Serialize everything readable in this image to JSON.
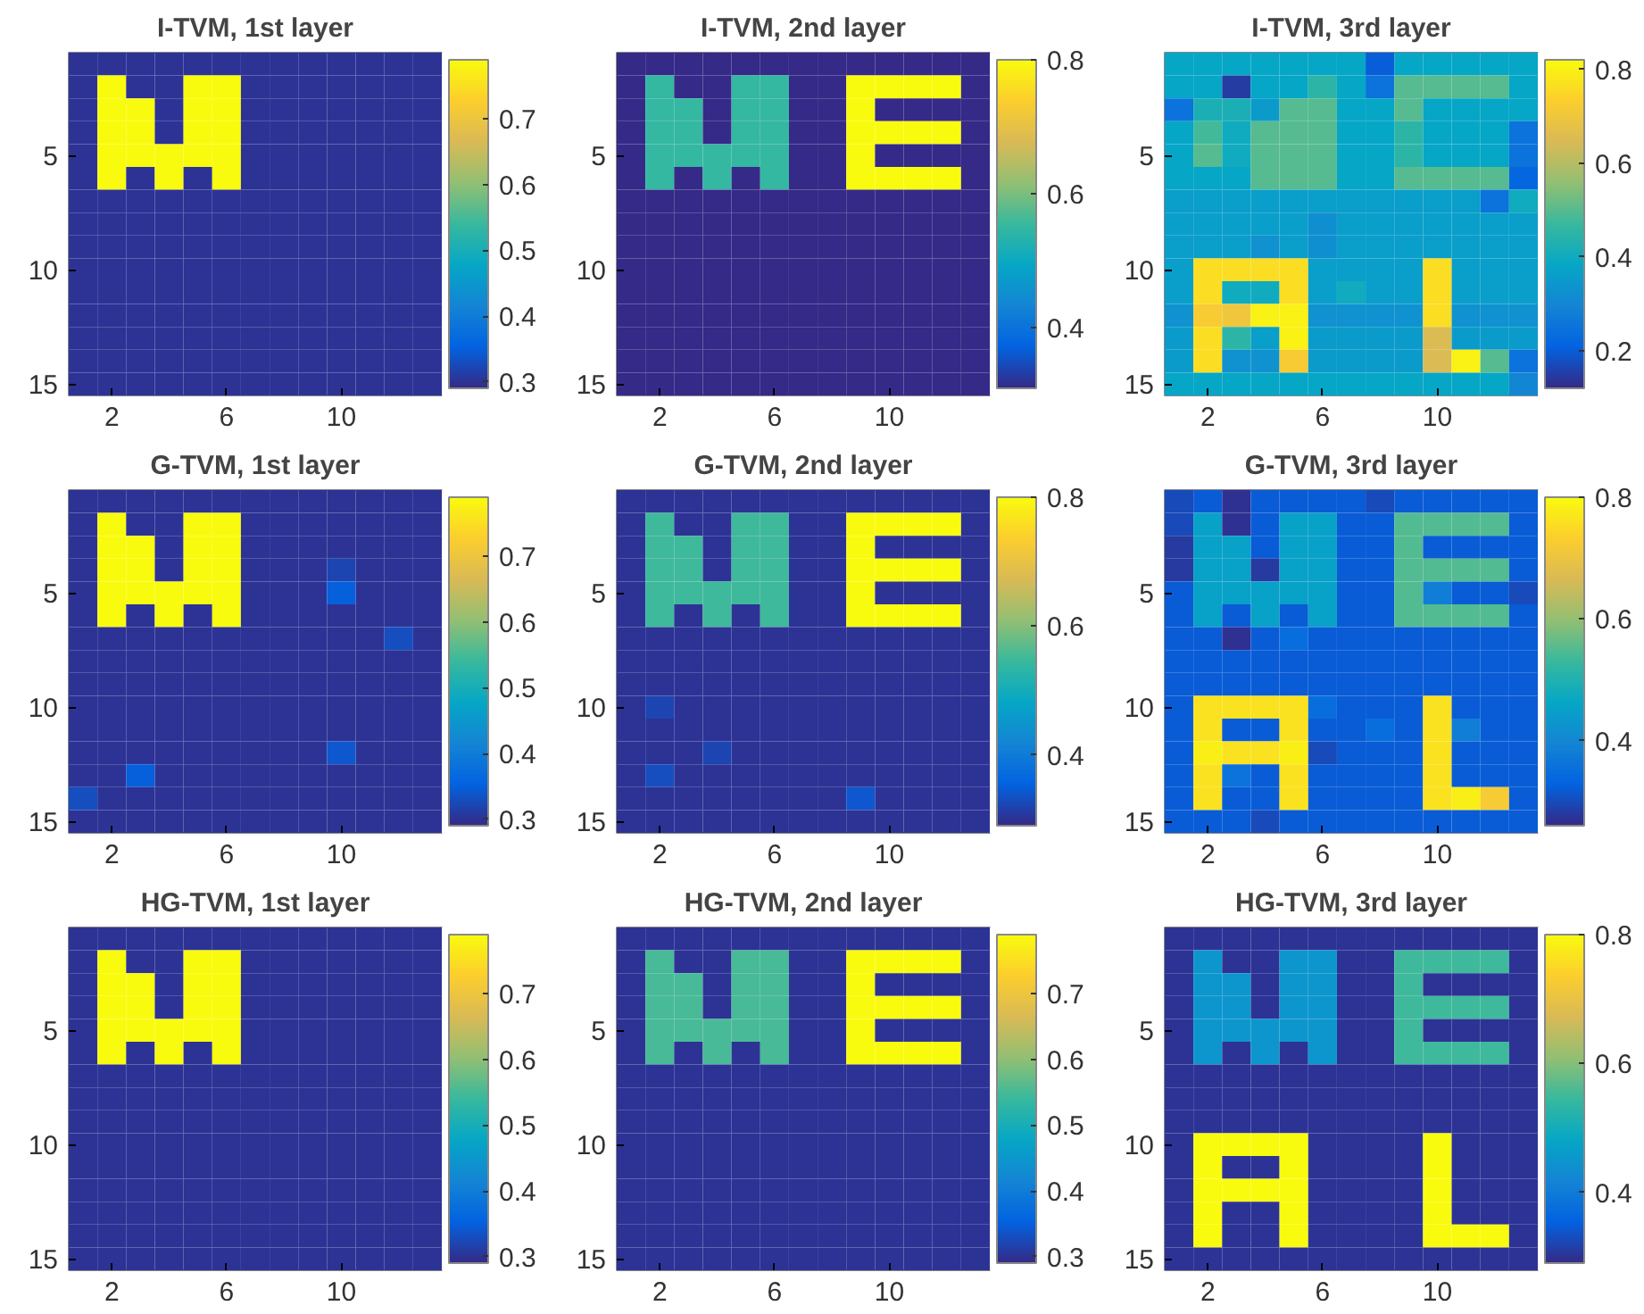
{
  "chart_data": [
    {
      "type": "heatmap",
      "title": "I-TVM, 1st layer",
      "xlim": [
        0.5,
        13.5
      ],
      "ylim": [
        15.5,
        0.5
      ],
      "xticks": [
        2,
        6,
        10
      ],
      "yticks": [
        5,
        10,
        15
      ],
      "clim": [
        0.29,
        0.79
      ],
      "cticks": [
        0.3,
        0.4,
        0.5,
        0.6,
        0.7
      ],
      "grid": false,
      "cells": [
        [
          0.3,
          0.3,
          0.3,
          0.3,
          0.3,
          0.3,
          0.3,
          0.3,
          0.3,
          0.3,
          0.3,
          0.3,
          0.3
        ],
        [
          0.3,
          0.79,
          0.3,
          0.3,
          0.79,
          0.79,
          0.3,
          0.3,
          0.3,
          0.3,
          0.3,
          0.3,
          0.3
        ],
        [
          0.3,
          0.79,
          0.79,
          0.3,
          0.79,
          0.79,
          0.3,
          0.3,
          0.3,
          0.3,
          0.3,
          0.3,
          0.3
        ],
        [
          0.3,
          0.79,
          0.79,
          0.3,
          0.79,
          0.79,
          0.3,
          0.3,
          0.3,
          0.3,
          0.3,
          0.3,
          0.3
        ],
        [
          0.3,
          0.79,
          0.79,
          0.79,
          0.79,
          0.79,
          0.3,
          0.3,
          0.3,
          0.3,
          0.3,
          0.3,
          0.3
        ],
        [
          0.3,
          0.79,
          0.3,
          0.79,
          0.3,
          0.79,
          0.3,
          0.3,
          0.3,
          0.3,
          0.3,
          0.3,
          0.3
        ],
        [
          0.3,
          0.3,
          0.3,
          0.3,
          0.3,
          0.3,
          0.3,
          0.3,
          0.3,
          0.3,
          0.3,
          0.3,
          0.3
        ],
        [
          0.3,
          0.3,
          0.3,
          0.3,
          0.3,
          0.3,
          0.3,
          0.3,
          0.3,
          0.3,
          0.3,
          0.3,
          0.3
        ],
        [
          0.3,
          0.3,
          0.3,
          0.3,
          0.3,
          0.3,
          0.3,
          0.3,
          0.3,
          0.3,
          0.3,
          0.3,
          0.3
        ],
        [
          0.3,
          0.3,
          0.3,
          0.3,
          0.3,
          0.3,
          0.3,
          0.3,
          0.3,
          0.3,
          0.3,
          0.3,
          0.3
        ],
        [
          0.3,
          0.3,
          0.3,
          0.3,
          0.3,
          0.3,
          0.3,
          0.3,
          0.3,
          0.3,
          0.3,
          0.3,
          0.3
        ],
        [
          0.3,
          0.3,
          0.3,
          0.3,
          0.3,
          0.3,
          0.3,
          0.3,
          0.3,
          0.3,
          0.3,
          0.3,
          0.3
        ],
        [
          0.3,
          0.3,
          0.3,
          0.3,
          0.3,
          0.3,
          0.3,
          0.3,
          0.3,
          0.3,
          0.3,
          0.3,
          0.3
        ],
        [
          0.3,
          0.3,
          0.3,
          0.3,
          0.3,
          0.3,
          0.3,
          0.3,
          0.3,
          0.3,
          0.3,
          0.3,
          0.3
        ],
        [
          0.3,
          0.3,
          0.3,
          0.3,
          0.3,
          0.3,
          0.3,
          0.3,
          0.3,
          0.3,
          0.3,
          0.3,
          0.3
        ]
      ]
    },
    {
      "type": "heatmap",
      "title": "I-TVM, 2nd layer",
      "xlim": [
        0.5,
        13.5
      ],
      "ylim": [
        15.5,
        0.5
      ],
      "xticks": [
        2,
        6,
        10
      ],
      "yticks": [
        5,
        10,
        15
      ],
      "clim": [
        0.31,
        0.8
      ],
      "cticks": [
        0.4,
        0.6,
        0.8
      ],
      "grid": false,
      "cells": [
        [
          0.31,
          0.31,
          0.31,
          0.31,
          0.31,
          0.31,
          0.31,
          0.31,
          0.31,
          0.31,
          0.31,
          0.31,
          0.31
        ],
        [
          0.31,
          0.55,
          0.31,
          0.31,
          0.55,
          0.55,
          0.31,
          0.31,
          0.8,
          0.8,
          0.8,
          0.8,
          0.31
        ],
        [
          0.31,
          0.55,
          0.55,
          0.31,
          0.55,
          0.55,
          0.31,
          0.31,
          0.8,
          0.31,
          0.31,
          0.31,
          0.31
        ],
        [
          0.31,
          0.55,
          0.55,
          0.31,
          0.55,
          0.55,
          0.31,
          0.31,
          0.8,
          0.8,
          0.8,
          0.8,
          0.31
        ],
        [
          0.31,
          0.55,
          0.55,
          0.55,
          0.55,
          0.55,
          0.31,
          0.31,
          0.8,
          0.31,
          0.31,
          0.31,
          0.31
        ],
        [
          0.31,
          0.55,
          0.31,
          0.55,
          0.31,
          0.55,
          0.31,
          0.31,
          0.8,
          0.8,
          0.8,
          0.8,
          0.31
        ],
        [
          0.31,
          0.31,
          0.31,
          0.31,
          0.31,
          0.31,
          0.31,
          0.31,
          0.31,
          0.31,
          0.31,
          0.31,
          0.31
        ],
        [
          0.31,
          0.31,
          0.31,
          0.31,
          0.31,
          0.31,
          0.31,
          0.31,
          0.31,
          0.31,
          0.31,
          0.31,
          0.31
        ],
        [
          0.31,
          0.31,
          0.31,
          0.31,
          0.31,
          0.31,
          0.31,
          0.31,
          0.31,
          0.31,
          0.31,
          0.31,
          0.31
        ],
        [
          0.31,
          0.31,
          0.31,
          0.31,
          0.31,
          0.31,
          0.31,
          0.31,
          0.31,
          0.31,
          0.31,
          0.31,
          0.31
        ],
        [
          0.31,
          0.31,
          0.31,
          0.31,
          0.31,
          0.31,
          0.31,
          0.31,
          0.31,
          0.31,
          0.31,
          0.31,
          0.31
        ],
        [
          0.31,
          0.31,
          0.31,
          0.31,
          0.31,
          0.31,
          0.31,
          0.31,
          0.31,
          0.31,
          0.31,
          0.31,
          0.31
        ],
        [
          0.31,
          0.31,
          0.31,
          0.31,
          0.31,
          0.31,
          0.31,
          0.31,
          0.31,
          0.31,
          0.31,
          0.31,
          0.31
        ],
        [
          0.31,
          0.31,
          0.31,
          0.31,
          0.31,
          0.31,
          0.31,
          0.31,
          0.31,
          0.31,
          0.31,
          0.31,
          0.31
        ],
        [
          0.31,
          0.31,
          0.31,
          0.31,
          0.31,
          0.31,
          0.31,
          0.31,
          0.31,
          0.31,
          0.31,
          0.31,
          0.31
        ]
      ]
    },
    {
      "type": "heatmap",
      "title": "I-TVM, 3rd layer",
      "xlim": [
        0.5,
        13.5
      ],
      "ylim": [
        15.5,
        0.5
      ],
      "xticks": [
        2,
        6,
        10
      ],
      "yticks": [
        5,
        10,
        15
      ],
      "clim": [
        0.12,
        0.82
      ],
      "cticks": [
        0.2,
        0.4,
        0.6,
        0.8
      ],
      "grid": false,
      "cells": [
        [
          0.38,
          0.38,
          0.38,
          0.38,
          0.38,
          0.38,
          0.38,
          0.2,
          0.38,
          0.38,
          0.38,
          0.38,
          0.38
        ],
        [
          0.38,
          0.38,
          0.15,
          0.38,
          0.38,
          0.45,
          0.38,
          0.25,
          0.5,
          0.5,
          0.5,
          0.5,
          0.38
        ],
        [
          0.25,
          0.42,
          0.42,
          0.35,
          0.5,
          0.5,
          0.38,
          0.38,
          0.5,
          0.38,
          0.38,
          0.38,
          0.38
        ],
        [
          0.38,
          0.48,
          0.4,
          0.5,
          0.5,
          0.5,
          0.38,
          0.38,
          0.45,
          0.38,
          0.38,
          0.38,
          0.25
        ],
        [
          0.38,
          0.5,
          0.4,
          0.5,
          0.5,
          0.5,
          0.38,
          0.38,
          0.45,
          0.38,
          0.38,
          0.38,
          0.25
        ],
        [
          0.38,
          0.38,
          0.38,
          0.5,
          0.5,
          0.5,
          0.38,
          0.38,
          0.5,
          0.5,
          0.5,
          0.5,
          0.22
        ],
        [
          0.36,
          0.36,
          0.36,
          0.36,
          0.36,
          0.36,
          0.36,
          0.36,
          0.36,
          0.36,
          0.36,
          0.25,
          0.4
        ],
        [
          0.36,
          0.36,
          0.36,
          0.36,
          0.36,
          0.32,
          0.36,
          0.36,
          0.36,
          0.36,
          0.36,
          0.36,
          0.36
        ],
        [
          0.36,
          0.36,
          0.36,
          0.33,
          0.36,
          0.32,
          0.36,
          0.36,
          0.36,
          0.36,
          0.36,
          0.36,
          0.36
        ],
        [
          0.36,
          0.76,
          0.76,
          0.76,
          0.76,
          0.36,
          0.36,
          0.36,
          0.36,
          0.76,
          0.36,
          0.36,
          0.36
        ],
        [
          0.36,
          0.76,
          0.4,
          0.4,
          0.76,
          0.36,
          0.4,
          0.36,
          0.36,
          0.76,
          0.36,
          0.36,
          0.36
        ],
        [
          0.33,
          0.72,
          0.7,
          0.8,
          0.8,
          0.33,
          0.33,
          0.33,
          0.33,
          0.76,
          0.33,
          0.33,
          0.33
        ],
        [
          0.35,
          0.76,
          0.45,
          0.36,
          0.8,
          0.35,
          0.35,
          0.35,
          0.35,
          0.65,
          0.35,
          0.35,
          0.35
        ],
        [
          0.35,
          0.76,
          0.33,
          0.33,
          0.72,
          0.35,
          0.35,
          0.35,
          0.35,
          0.65,
          0.8,
          0.5,
          0.25
        ],
        [
          0.38,
          0.38,
          0.38,
          0.38,
          0.38,
          0.38,
          0.38,
          0.38,
          0.38,
          0.38,
          0.38,
          0.38,
          0.3
        ]
      ]
    },
    {
      "type": "heatmap",
      "title": "G-TVM, 1st layer",
      "xlim": [
        0.5,
        13.5
      ],
      "ylim": [
        15.5,
        0.5
      ],
      "xticks": [
        2,
        6,
        10
      ],
      "yticks": [
        5,
        10,
        15
      ],
      "clim": [
        0.29,
        0.79
      ],
      "cticks": [
        0.3,
        0.4,
        0.5,
        0.6,
        0.7
      ],
      "grid": false,
      "cells": [
        [
          0.3,
          0.3,
          0.3,
          0.3,
          0.3,
          0.3,
          0.3,
          0.3,
          0.3,
          0.3,
          0.3,
          0.3,
          0.3
        ],
        [
          0.3,
          0.79,
          0.3,
          0.3,
          0.79,
          0.79,
          0.3,
          0.3,
          0.3,
          0.3,
          0.3,
          0.3,
          0.3
        ],
        [
          0.3,
          0.79,
          0.79,
          0.3,
          0.79,
          0.79,
          0.3,
          0.3,
          0.3,
          0.3,
          0.3,
          0.3,
          0.3
        ],
        [
          0.3,
          0.79,
          0.79,
          0.3,
          0.79,
          0.79,
          0.3,
          0.3,
          0.3,
          0.32,
          0.3,
          0.3,
          0.3
        ],
        [
          0.3,
          0.79,
          0.79,
          0.79,
          0.79,
          0.79,
          0.3,
          0.3,
          0.3,
          0.35,
          0.3,
          0.3,
          0.3
        ],
        [
          0.3,
          0.79,
          0.3,
          0.79,
          0.3,
          0.79,
          0.3,
          0.3,
          0.3,
          0.3,
          0.3,
          0.3,
          0.3
        ],
        [
          0.3,
          0.3,
          0.3,
          0.3,
          0.3,
          0.3,
          0.3,
          0.3,
          0.3,
          0.3,
          0.3,
          0.33,
          0.3
        ],
        [
          0.3,
          0.3,
          0.3,
          0.3,
          0.3,
          0.3,
          0.3,
          0.3,
          0.3,
          0.3,
          0.3,
          0.3,
          0.3
        ],
        [
          0.3,
          0.3,
          0.3,
          0.3,
          0.3,
          0.3,
          0.3,
          0.3,
          0.3,
          0.3,
          0.3,
          0.3,
          0.3
        ],
        [
          0.3,
          0.3,
          0.3,
          0.3,
          0.3,
          0.3,
          0.3,
          0.3,
          0.3,
          0.3,
          0.3,
          0.3,
          0.3
        ],
        [
          0.3,
          0.3,
          0.3,
          0.3,
          0.3,
          0.3,
          0.3,
          0.3,
          0.3,
          0.3,
          0.3,
          0.3,
          0.3
        ],
        [
          0.3,
          0.3,
          0.3,
          0.3,
          0.3,
          0.3,
          0.3,
          0.3,
          0.3,
          0.34,
          0.3,
          0.3,
          0.3
        ],
        [
          0.3,
          0.3,
          0.35,
          0.3,
          0.3,
          0.3,
          0.3,
          0.3,
          0.3,
          0.3,
          0.3,
          0.3,
          0.3
        ],
        [
          0.33,
          0.3,
          0.3,
          0.3,
          0.3,
          0.3,
          0.3,
          0.3,
          0.3,
          0.3,
          0.3,
          0.3,
          0.3
        ],
        [
          0.3,
          0.3,
          0.3,
          0.3,
          0.3,
          0.3,
          0.3,
          0.3,
          0.3,
          0.3,
          0.3,
          0.3,
          0.3
        ]
      ]
    },
    {
      "type": "heatmap",
      "title": "G-TVM, 2nd layer",
      "xlim": [
        0.5,
        13.5
      ],
      "ylim": [
        15.5,
        0.5
      ],
      "xticks": [
        2,
        6,
        10
      ],
      "yticks": [
        5,
        10,
        15
      ],
      "clim": [
        0.29,
        0.8
      ],
      "cticks": [
        0.4,
        0.6,
        0.8
      ],
      "grid": false,
      "cells": [
        [
          0.3,
          0.3,
          0.3,
          0.3,
          0.3,
          0.3,
          0.3,
          0.3,
          0.3,
          0.3,
          0.3,
          0.3,
          0.3
        ],
        [
          0.3,
          0.55,
          0.3,
          0.3,
          0.55,
          0.55,
          0.3,
          0.3,
          0.8,
          0.8,
          0.8,
          0.8,
          0.3
        ],
        [
          0.3,
          0.55,
          0.55,
          0.3,
          0.55,
          0.55,
          0.3,
          0.3,
          0.8,
          0.3,
          0.3,
          0.3,
          0.3
        ],
        [
          0.3,
          0.55,
          0.55,
          0.3,
          0.55,
          0.55,
          0.3,
          0.3,
          0.8,
          0.8,
          0.8,
          0.8,
          0.3
        ],
        [
          0.3,
          0.55,
          0.55,
          0.55,
          0.55,
          0.55,
          0.3,
          0.3,
          0.8,
          0.3,
          0.3,
          0.3,
          0.3
        ],
        [
          0.3,
          0.55,
          0.3,
          0.55,
          0.3,
          0.55,
          0.3,
          0.3,
          0.8,
          0.8,
          0.8,
          0.8,
          0.3
        ],
        [
          0.3,
          0.3,
          0.3,
          0.3,
          0.3,
          0.3,
          0.3,
          0.3,
          0.3,
          0.3,
          0.3,
          0.3,
          0.3
        ],
        [
          0.3,
          0.3,
          0.3,
          0.3,
          0.3,
          0.3,
          0.3,
          0.3,
          0.3,
          0.3,
          0.3,
          0.3,
          0.3
        ],
        [
          0.3,
          0.3,
          0.3,
          0.3,
          0.3,
          0.3,
          0.3,
          0.3,
          0.3,
          0.3,
          0.3,
          0.3,
          0.3
        ],
        [
          0.3,
          0.32,
          0.3,
          0.3,
          0.3,
          0.3,
          0.3,
          0.3,
          0.3,
          0.3,
          0.3,
          0.3,
          0.3
        ],
        [
          0.3,
          0.3,
          0.3,
          0.3,
          0.3,
          0.3,
          0.3,
          0.3,
          0.3,
          0.3,
          0.3,
          0.3,
          0.3
        ],
        [
          0.3,
          0.3,
          0.3,
          0.32,
          0.3,
          0.3,
          0.3,
          0.3,
          0.3,
          0.3,
          0.3,
          0.3,
          0.3
        ],
        [
          0.3,
          0.33,
          0.3,
          0.3,
          0.3,
          0.3,
          0.3,
          0.3,
          0.3,
          0.3,
          0.3,
          0.3,
          0.3
        ],
        [
          0.3,
          0.3,
          0.3,
          0.3,
          0.3,
          0.3,
          0.3,
          0.3,
          0.34,
          0.3,
          0.3,
          0.3,
          0.3
        ],
        [
          0.3,
          0.3,
          0.3,
          0.3,
          0.3,
          0.3,
          0.3,
          0.3,
          0.3,
          0.3,
          0.3,
          0.3,
          0.3
        ]
      ]
    },
    {
      "type": "heatmap",
      "title": "G-TVM, 3rd layer",
      "xlim": [
        0.5,
        13.5
      ],
      "ylim": [
        15.5,
        0.5
      ],
      "xticks": [
        2,
        6,
        10
      ],
      "yticks": [
        5,
        10,
        15
      ],
      "clim": [
        0.26,
        0.8
      ],
      "cticks": [
        0.4,
        0.6,
        0.8
      ],
      "grid": false,
      "cells": [
        [
          0.3,
          0.32,
          0.27,
          0.32,
          0.32,
          0.32,
          0.32,
          0.3,
          0.32,
          0.32,
          0.32,
          0.32,
          0.32
        ],
        [
          0.3,
          0.45,
          0.27,
          0.32,
          0.45,
          0.45,
          0.32,
          0.32,
          0.55,
          0.55,
          0.55,
          0.55,
          0.32
        ],
        [
          0.28,
          0.45,
          0.45,
          0.32,
          0.45,
          0.45,
          0.32,
          0.32,
          0.55,
          0.32,
          0.32,
          0.32,
          0.32
        ],
        [
          0.28,
          0.45,
          0.45,
          0.28,
          0.45,
          0.45,
          0.32,
          0.32,
          0.55,
          0.55,
          0.55,
          0.55,
          0.32
        ],
        [
          0.32,
          0.45,
          0.45,
          0.45,
          0.45,
          0.45,
          0.32,
          0.32,
          0.55,
          0.38,
          0.32,
          0.32,
          0.3
        ],
        [
          0.32,
          0.45,
          0.32,
          0.45,
          0.32,
          0.45,
          0.32,
          0.32,
          0.55,
          0.55,
          0.55,
          0.55,
          0.32
        ],
        [
          0.32,
          0.32,
          0.27,
          0.32,
          0.35,
          0.32,
          0.32,
          0.32,
          0.32,
          0.32,
          0.32,
          0.32,
          0.32
        ],
        [
          0.32,
          0.32,
          0.32,
          0.32,
          0.32,
          0.32,
          0.32,
          0.32,
          0.32,
          0.32,
          0.32,
          0.32,
          0.32
        ],
        [
          0.32,
          0.32,
          0.32,
          0.32,
          0.32,
          0.32,
          0.32,
          0.32,
          0.32,
          0.32,
          0.32,
          0.32,
          0.32
        ],
        [
          0.32,
          0.76,
          0.76,
          0.76,
          0.76,
          0.35,
          0.32,
          0.32,
          0.32,
          0.76,
          0.32,
          0.32,
          0.32
        ],
        [
          0.32,
          0.76,
          0.32,
          0.32,
          0.76,
          0.32,
          0.32,
          0.35,
          0.32,
          0.76,
          0.38,
          0.32,
          0.32
        ],
        [
          0.32,
          0.78,
          0.76,
          0.76,
          0.78,
          0.3,
          0.32,
          0.32,
          0.32,
          0.76,
          0.32,
          0.32,
          0.32
        ],
        [
          0.32,
          0.76,
          0.36,
          0.32,
          0.76,
          0.32,
          0.32,
          0.32,
          0.32,
          0.76,
          0.32,
          0.32,
          0.32
        ],
        [
          0.32,
          0.76,
          0.32,
          0.32,
          0.76,
          0.32,
          0.32,
          0.32,
          0.32,
          0.76,
          0.78,
          0.72,
          0.32
        ],
        [
          0.32,
          0.32,
          0.32,
          0.3,
          0.32,
          0.32,
          0.32,
          0.32,
          0.32,
          0.32,
          0.32,
          0.32,
          0.32
        ]
      ]
    },
    {
      "type": "heatmap",
      "title": "HG-TVM, 1st layer",
      "xlim": [
        0.5,
        13.5
      ],
      "ylim": [
        15.5,
        0.5
      ],
      "xticks": [
        2,
        6,
        10
      ],
      "yticks": [
        5,
        10,
        15
      ],
      "clim": [
        0.29,
        0.79
      ],
      "cticks": [
        0.3,
        0.4,
        0.5,
        0.6,
        0.7
      ],
      "grid": false,
      "cells": [
        [
          0.3,
          0.3,
          0.3,
          0.3,
          0.3,
          0.3,
          0.3,
          0.3,
          0.3,
          0.3,
          0.3,
          0.3,
          0.3
        ],
        [
          0.3,
          0.79,
          0.3,
          0.3,
          0.79,
          0.79,
          0.3,
          0.3,
          0.3,
          0.3,
          0.3,
          0.3,
          0.3
        ],
        [
          0.3,
          0.79,
          0.79,
          0.3,
          0.79,
          0.79,
          0.3,
          0.3,
          0.3,
          0.3,
          0.3,
          0.3,
          0.3
        ],
        [
          0.3,
          0.79,
          0.79,
          0.3,
          0.79,
          0.79,
          0.3,
          0.3,
          0.3,
          0.3,
          0.3,
          0.3,
          0.3
        ],
        [
          0.3,
          0.79,
          0.79,
          0.79,
          0.79,
          0.79,
          0.3,
          0.3,
          0.3,
          0.3,
          0.3,
          0.3,
          0.3
        ],
        [
          0.3,
          0.79,
          0.3,
          0.79,
          0.3,
          0.79,
          0.3,
          0.3,
          0.3,
          0.3,
          0.3,
          0.3,
          0.3
        ],
        [
          0.3,
          0.3,
          0.3,
          0.3,
          0.3,
          0.3,
          0.3,
          0.3,
          0.3,
          0.3,
          0.3,
          0.3,
          0.3
        ],
        [
          0.3,
          0.3,
          0.3,
          0.3,
          0.3,
          0.3,
          0.3,
          0.3,
          0.3,
          0.3,
          0.3,
          0.3,
          0.3
        ],
        [
          0.3,
          0.3,
          0.3,
          0.3,
          0.3,
          0.3,
          0.3,
          0.3,
          0.3,
          0.3,
          0.3,
          0.3,
          0.3
        ],
        [
          0.3,
          0.3,
          0.3,
          0.3,
          0.3,
          0.3,
          0.3,
          0.3,
          0.3,
          0.3,
          0.3,
          0.3,
          0.3
        ],
        [
          0.3,
          0.3,
          0.3,
          0.3,
          0.3,
          0.3,
          0.3,
          0.3,
          0.3,
          0.3,
          0.3,
          0.3,
          0.3
        ],
        [
          0.3,
          0.3,
          0.3,
          0.3,
          0.3,
          0.3,
          0.3,
          0.3,
          0.3,
          0.3,
          0.3,
          0.3,
          0.3
        ],
        [
          0.3,
          0.3,
          0.3,
          0.3,
          0.3,
          0.3,
          0.3,
          0.3,
          0.3,
          0.3,
          0.3,
          0.3,
          0.3
        ],
        [
          0.3,
          0.3,
          0.3,
          0.3,
          0.3,
          0.3,
          0.3,
          0.3,
          0.3,
          0.3,
          0.3,
          0.3,
          0.3
        ],
        [
          0.3,
          0.3,
          0.3,
          0.3,
          0.3,
          0.3,
          0.3,
          0.3,
          0.3,
          0.3,
          0.3,
          0.3,
          0.3
        ]
      ]
    },
    {
      "type": "heatmap",
      "title": "HG-TVM, 2nd layer",
      "xlim": [
        0.5,
        13.5
      ],
      "ylim": [
        15.5,
        0.5
      ],
      "xticks": [
        2,
        6,
        10
      ],
      "yticks": [
        5,
        10,
        15
      ],
      "clim": [
        0.29,
        0.79
      ],
      "cticks": [
        0.3,
        0.4,
        0.5,
        0.6,
        0.7
      ],
      "grid": false,
      "cells": [
        [
          0.3,
          0.3,
          0.3,
          0.3,
          0.3,
          0.3,
          0.3,
          0.3,
          0.3,
          0.3,
          0.3,
          0.3,
          0.3
        ],
        [
          0.3,
          0.55,
          0.3,
          0.3,
          0.55,
          0.55,
          0.3,
          0.3,
          0.79,
          0.79,
          0.79,
          0.79,
          0.3
        ],
        [
          0.3,
          0.55,
          0.55,
          0.3,
          0.55,
          0.55,
          0.3,
          0.3,
          0.79,
          0.3,
          0.3,
          0.3,
          0.3
        ],
        [
          0.3,
          0.55,
          0.55,
          0.3,
          0.55,
          0.55,
          0.3,
          0.3,
          0.79,
          0.79,
          0.79,
          0.79,
          0.3
        ],
        [
          0.3,
          0.55,
          0.55,
          0.55,
          0.55,
          0.55,
          0.3,
          0.3,
          0.79,
          0.3,
          0.3,
          0.3,
          0.3
        ],
        [
          0.3,
          0.55,
          0.3,
          0.55,
          0.3,
          0.55,
          0.3,
          0.3,
          0.79,
          0.79,
          0.79,
          0.79,
          0.3
        ],
        [
          0.3,
          0.3,
          0.3,
          0.3,
          0.3,
          0.3,
          0.3,
          0.3,
          0.3,
          0.3,
          0.3,
          0.3,
          0.3
        ],
        [
          0.3,
          0.3,
          0.3,
          0.3,
          0.3,
          0.3,
          0.3,
          0.3,
          0.3,
          0.3,
          0.3,
          0.3,
          0.3
        ],
        [
          0.3,
          0.3,
          0.3,
          0.3,
          0.3,
          0.3,
          0.3,
          0.3,
          0.3,
          0.3,
          0.3,
          0.3,
          0.3
        ],
        [
          0.3,
          0.3,
          0.3,
          0.3,
          0.3,
          0.3,
          0.3,
          0.3,
          0.3,
          0.3,
          0.3,
          0.3,
          0.3
        ],
        [
          0.3,
          0.3,
          0.3,
          0.3,
          0.3,
          0.3,
          0.3,
          0.3,
          0.3,
          0.3,
          0.3,
          0.3,
          0.3
        ],
        [
          0.3,
          0.3,
          0.3,
          0.3,
          0.3,
          0.3,
          0.3,
          0.3,
          0.3,
          0.3,
          0.3,
          0.3,
          0.3
        ],
        [
          0.3,
          0.3,
          0.3,
          0.3,
          0.3,
          0.3,
          0.3,
          0.3,
          0.3,
          0.3,
          0.3,
          0.3,
          0.3
        ],
        [
          0.3,
          0.3,
          0.3,
          0.3,
          0.3,
          0.3,
          0.3,
          0.3,
          0.3,
          0.3,
          0.3,
          0.3,
          0.3
        ],
        [
          0.3,
          0.3,
          0.3,
          0.3,
          0.3,
          0.3,
          0.3,
          0.3,
          0.3,
          0.3,
          0.3,
          0.3,
          0.3
        ]
      ]
    },
    {
      "type": "heatmap",
      "title": "HG-TVM, 3rd layer",
      "xlim": [
        0.5,
        13.5
      ],
      "ylim": [
        15.5,
        0.5
      ],
      "xticks": [
        2,
        6,
        10
      ],
      "yticks": [
        5,
        10,
        15
      ],
      "clim": [
        0.29,
        0.8
      ],
      "cticks": [
        0.4,
        0.6,
        0.8
      ],
      "grid": false,
      "cells": [
        [
          0.3,
          0.3,
          0.3,
          0.3,
          0.3,
          0.3,
          0.3,
          0.3,
          0.3,
          0.3,
          0.3,
          0.3,
          0.3
        ],
        [
          0.3,
          0.45,
          0.3,
          0.3,
          0.45,
          0.45,
          0.3,
          0.3,
          0.55,
          0.55,
          0.55,
          0.55,
          0.3
        ],
        [
          0.3,
          0.45,
          0.45,
          0.3,
          0.45,
          0.45,
          0.3,
          0.3,
          0.55,
          0.3,
          0.3,
          0.3,
          0.3
        ],
        [
          0.3,
          0.45,
          0.45,
          0.3,
          0.45,
          0.45,
          0.3,
          0.3,
          0.55,
          0.55,
          0.55,
          0.55,
          0.3
        ],
        [
          0.3,
          0.45,
          0.45,
          0.45,
          0.45,
          0.45,
          0.3,
          0.3,
          0.55,
          0.3,
          0.3,
          0.3,
          0.3
        ],
        [
          0.3,
          0.45,
          0.3,
          0.45,
          0.3,
          0.45,
          0.3,
          0.3,
          0.55,
          0.55,
          0.55,
          0.55,
          0.3
        ],
        [
          0.3,
          0.3,
          0.3,
          0.3,
          0.3,
          0.3,
          0.3,
          0.3,
          0.3,
          0.3,
          0.3,
          0.3,
          0.3
        ],
        [
          0.3,
          0.3,
          0.3,
          0.3,
          0.3,
          0.3,
          0.3,
          0.3,
          0.3,
          0.3,
          0.3,
          0.3,
          0.3
        ],
        [
          0.3,
          0.3,
          0.3,
          0.3,
          0.3,
          0.3,
          0.3,
          0.3,
          0.3,
          0.3,
          0.3,
          0.3,
          0.3
        ],
        [
          0.3,
          0.8,
          0.8,
          0.8,
          0.8,
          0.3,
          0.3,
          0.3,
          0.3,
          0.8,
          0.3,
          0.3,
          0.3
        ],
        [
          0.3,
          0.8,
          0.3,
          0.3,
          0.8,
          0.3,
          0.3,
          0.3,
          0.3,
          0.8,
          0.3,
          0.3,
          0.3
        ],
        [
          0.3,
          0.8,
          0.8,
          0.8,
          0.8,
          0.3,
          0.3,
          0.3,
          0.3,
          0.8,
          0.3,
          0.3,
          0.3
        ],
        [
          0.3,
          0.8,
          0.3,
          0.3,
          0.8,
          0.3,
          0.3,
          0.3,
          0.3,
          0.8,
          0.3,
          0.3,
          0.3
        ],
        [
          0.3,
          0.8,
          0.3,
          0.3,
          0.8,
          0.3,
          0.3,
          0.3,
          0.3,
          0.8,
          0.8,
          0.8,
          0.3
        ],
        [
          0.3,
          0.3,
          0.3,
          0.3,
          0.3,
          0.3,
          0.3,
          0.3,
          0.3,
          0.3,
          0.3,
          0.3,
          0.3
        ]
      ]
    }
  ]
}
